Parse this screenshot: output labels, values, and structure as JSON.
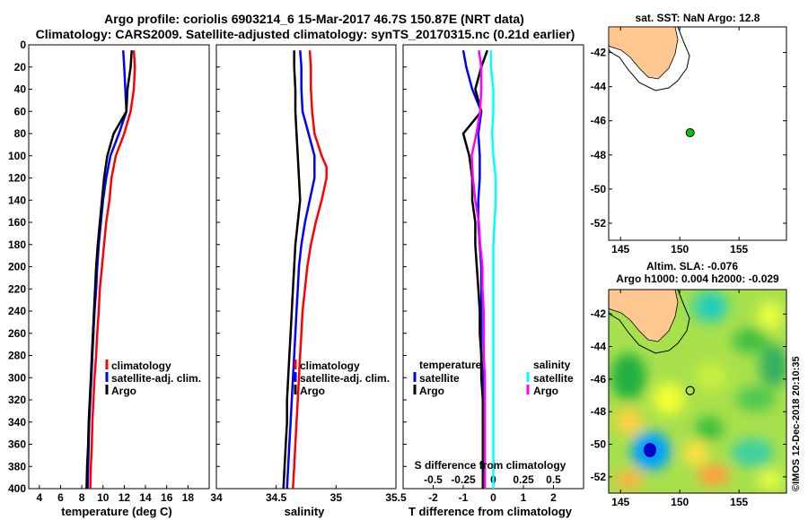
{
  "titles": {
    "line1": "Argo profile: coriolis 6903214_6 15-Mar-2017 46.7S 150.87E (NRT data)",
    "line2": "Climatology: CARS2009. Satellite-adjusted climatology: synTS_20170315.nc (0.21d earlier)"
  },
  "watermark": "©IMOS 12-Dec-2018 20:10:35",
  "colors": {
    "argo": "#000000",
    "climatology": "#ff0000",
    "satellite": "#0000ff",
    "salinity_satellite": "#00ffff",
    "salinity_argo": "#ff00ff",
    "land": "#ffc890"
  },
  "chart_data": [
    {
      "type": "line",
      "title": "",
      "xlabel": "temperature (deg C)",
      "ylabel": "",
      "xlim": [
        3,
        20
      ],
      "ylim": [
        0,
        400
      ],
      "xticks": [
        "4",
        "6",
        "8",
        "10",
        "12",
        "14",
        "16",
        "18"
      ],
      "yticks": [
        "0",
        "20",
        "40",
        "60",
        "80",
        "100",
        "120",
        "140",
        "160",
        "180",
        "200",
        "220",
        "240",
        "260",
        "280",
        "300",
        "320",
        "340",
        "360",
        "380",
        "400"
      ],
      "series": [
        {
          "name": "climatology",
          "color": "#ff0000",
          "depth": [
            5,
            20,
            40,
            60,
            80,
            100,
            120,
            140,
            160,
            180,
            200,
            220,
            240,
            260,
            280,
            300,
            320,
            340,
            360,
            380,
            400
          ],
          "values": [
            12.9,
            13.0,
            12.9,
            12.6,
            12.0,
            11.2,
            10.8,
            10.6,
            10.3,
            10.1,
            9.9,
            9.7,
            9.6,
            9.45,
            9.35,
            9.2,
            9.1,
            9.0,
            8.95,
            8.85,
            8.8
          ]
        },
        {
          "name": "satellite-adj. clim.",
          "color": "#0000ff",
          "depth": [
            5,
            20,
            40,
            60,
            80,
            100,
            120,
            140,
            160,
            180,
            200,
            220,
            240,
            260,
            280,
            300,
            320,
            340,
            360,
            380,
            400
          ],
          "values": [
            11.9,
            12.0,
            12.1,
            12.2,
            11.5,
            10.7,
            10.3,
            10.0,
            9.8,
            9.6,
            9.45,
            9.35,
            9.2,
            9.1,
            9.0,
            8.9,
            8.8,
            8.7,
            8.65,
            8.6,
            8.55
          ]
        },
        {
          "name": "Argo",
          "color": "#000000",
          "depth": [
            5,
            20,
            40,
            60,
            80,
            100,
            120,
            140,
            160,
            180,
            200,
            220,
            240,
            260,
            280,
            300,
            320,
            340,
            360,
            380,
            400
          ],
          "values": [
            12.7,
            12.6,
            12.3,
            12.2,
            11.0,
            10.4,
            10.1,
            9.9,
            9.7,
            9.5,
            9.35,
            9.25,
            9.15,
            9.05,
            8.95,
            8.85,
            8.75,
            8.65,
            8.6,
            8.5,
            8.45
          ]
        }
      ],
      "legend": [
        "climatology",
        "satellite-adj. clim.",
        "Argo"
      ]
    },
    {
      "type": "line",
      "title": "",
      "xlabel": "salinity",
      "ylabel": "",
      "xlim": [
        34,
        35.5
      ],
      "ylim": [
        0,
        400
      ],
      "xticks": [
        "34",
        "34.5",
        "35",
        "35.5"
      ],
      "series": [
        {
          "name": "climatology",
          "color": "#ff0000",
          "depth": [
            5,
            20,
            40,
            60,
            80,
            100,
            110,
            120,
            140,
            160,
            180,
            200,
            220,
            240,
            260,
            280,
            300,
            320,
            340,
            360,
            380,
            400
          ],
          "values": [
            34.78,
            34.79,
            34.79,
            34.8,
            34.82,
            34.88,
            34.92,
            34.92,
            34.88,
            34.83,
            34.79,
            34.76,
            34.74,
            34.72,
            34.71,
            34.7,
            34.69,
            34.68,
            34.67,
            34.66,
            34.65,
            34.64
          ]
        },
        {
          "name": "satellite-adj. clim.",
          "color": "#0000ff",
          "depth": [
            5,
            20,
            40,
            60,
            80,
            100,
            120,
            140,
            160,
            180,
            200,
            220,
            240,
            260,
            280,
            300,
            320,
            340,
            360,
            380,
            400
          ],
          "values": [
            34.7,
            34.71,
            34.71,
            34.72,
            34.77,
            34.82,
            34.82,
            34.78,
            34.74,
            34.71,
            34.69,
            34.68,
            34.67,
            34.66,
            34.65,
            34.64,
            34.63,
            34.62,
            34.61,
            34.6,
            34.59
          ]
        },
        {
          "name": "Argo",
          "color": "#000000",
          "depth": [
            5,
            20,
            40,
            60,
            80,
            100,
            120,
            140,
            160,
            180,
            200,
            220,
            240,
            260,
            280,
            300,
            320,
            340,
            360,
            380,
            400
          ],
          "values": [
            34.65,
            34.65,
            34.66,
            34.66,
            34.67,
            34.68,
            34.69,
            34.7,
            34.68,
            34.66,
            34.65,
            34.64,
            34.63,
            34.62,
            34.61,
            34.6,
            34.59,
            34.59,
            34.58,
            34.57,
            34.56
          ]
        }
      ],
      "legend": [
        "climatology",
        "satellite-adj. clim.",
        "Argo"
      ]
    },
    {
      "type": "line",
      "title": "",
      "xlabel": "T difference from climatology",
      "secondary_xlabel": "S difference from climatology",
      "xlim": [
        -3,
        3
      ],
      "ylim": [
        0,
        400
      ],
      "xticks": [
        "-2",
        "-1",
        "0",
        "1",
        "2"
      ],
      "secondary_xticks": [
        "-0.5",
        "-0.25",
        "0",
        "0.25",
        "0.5"
      ],
      "series": [
        {
          "name": "temperature satellite",
          "color": "#0000ff",
          "depth": [
            5,
            20,
            40,
            60,
            80,
            100,
            120,
            140,
            160,
            180,
            200,
            220,
            240,
            260,
            280,
            300,
            320,
            340,
            360,
            380,
            400
          ],
          "values": [
            -1.0,
            -0.9,
            -0.7,
            -0.4,
            -0.5,
            -0.45,
            -0.45,
            -0.5,
            -0.5,
            -0.45,
            -0.4,
            -0.4,
            -0.4,
            -0.4,
            -0.4,
            -0.35,
            -0.35,
            -0.35,
            -0.3,
            -0.3,
            -0.3
          ]
        },
        {
          "name": "temperature Argo",
          "color": "#000000",
          "depth": [
            5,
            20,
            40,
            60,
            80,
            100,
            120,
            140,
            160,
            180,
            200,
            220,
            240,
            260,
            280,
            300,
            320,
            340,
            360,
            380,
            400
          ],
          "values": [
            -0.2,
            -0.4,
            -0.6,
            -0.4,
            -1.0,
            -0.8,
            -0.7,
            -0.7,
            -0.6,
            -0.6,
            -0.55,
            -0.5,
            -0.45,
            -0.45,
            -0.4,
            -0.4,
            -0.35,
            -0.35,
            -0.35,
            -0.35,
            -0.35
          ]
        },
        {
          "name": "salinity satellite",
          "color": "#00ffff",
          "depth": [
            5,
            20,
            40,
            60,
            80,
            100,
            120,
            140,
            160,
            180,
            200,
            220,
            240,
            260,
            280,
            300,
            320,
            340,
            360,
            380,
            400
          ],
          "values": [
            -0.02,
            -0.02,
            0.0,
            0.0,
            -0.01,
            0.0,
            0.02,
            0.02,
            0.01,
            0.0,
            0.0,
            0.0,
            0.0,
            0.0,
            0.0,
            0.0,
            0.0,
            0.0,
            0.0,
            0.0,
            0.0
          ]
        },
        {
          "name": "salinity Argo",
          "color": "#ff00ff",
          "depth": [
            5,
            20,
            40,
            60,
            80,
            100,
            120,
            140,
            160,
            180,
            200,
            220,
            240,
            260,
            280,
            300,
            320,
            340,
            360,
            380,
            400
          ],
          "values": [
            -0.12,
            -0.1,
            -0.1,
            -0.11,
            -0.14,
            -0.18,
            -0.17,
            -0.15,
            -0.12,
            -0.11,
            -0.09,
            -0.09,
            -0.08,
            -0.08,
            -0.08,
            -0.07,
            -0.07,
            -0.07,
            -0.07,
            -0.07,
            -0.07
          ]
        }
      ],
      "legend_titles": [
        "temperature",
        "salinity"
      ],
      "legend": [
        "satellite",
        "Argo",
        "satellite",
        "Argo"
      ]
    },
    {
      "type": "scatter",
      "title": "sat. SST: NaN Argo: 12.8",
      "xlim": [
        144,
        159
      ],
      "ylim": [
        -53,
        -40.5
      ],
      "xticks": [
        "145",
        "150",
        "155"
      ],
      "yticks": [
        "-42",
        "-44",
        "-46",
        "-48",
        "-50",
        "-52"
      ],
      "points": [
        {
          "name": "Argo position",
          "x": 150.87,
          "y": -46.7,
          "color": "#00c800"
        }
      ]
    },
    {
      "type": "heatmap",
      "title": "Altim. SLA: -0.076",
      "subtitle": "Argo h1000: 0.004 h2000: -0.029",
      "xlim": [
        144,
        159
      ],
      "ylim": [
        -53,
        -40.5
      ],
      "xticks": [
        "145",
        "150",
        "155"
      ],
      "yticks": [
        "-42",
        "-44",
        "-46",
        "-48",
        "-50",
        "-52"
      ],
      "points": [
        {
          "name": "Argo position",
          "x": 150.87,
          "y": -46.7
        }
      ]
    }
  ]
}
